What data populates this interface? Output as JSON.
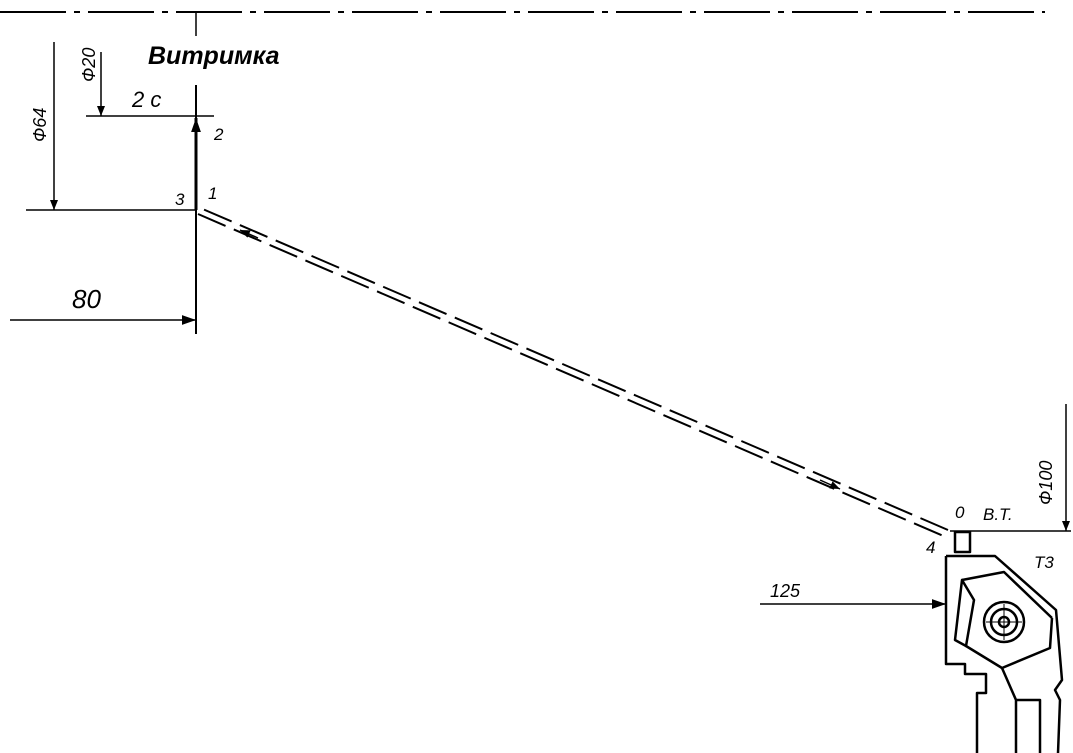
{
  "title": "Витримка",
  "dwell": "2 с",
  "diameters": {
    "d20": "Ф20",
    "d64": "Ф64",
    "d100": "Ф100"
  },
  "dims": {
    "x80": "80",
    "x125": "125"
  },
  "points": {
    "p0": "0",
    "p1": "1",
    "p2": "2",
    "p3": "3",
    "p4": "4"
  },
  "start_point": "В.Т.",
  "tool": "Т3"
}
